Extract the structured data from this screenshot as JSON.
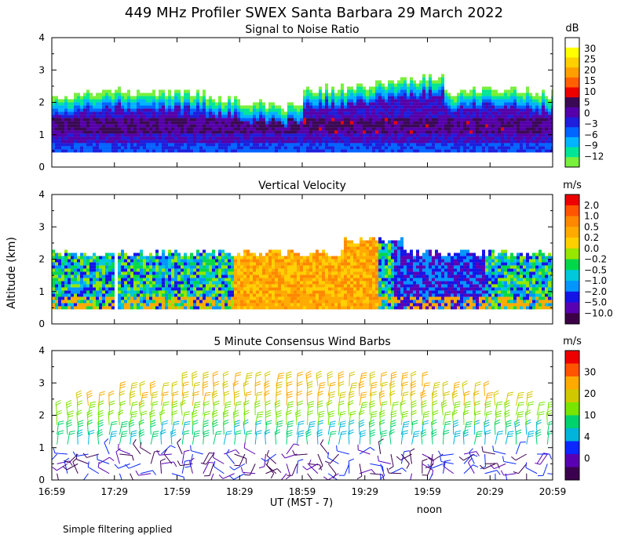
{
  "figure": {
    "title": "449 MHz Profiler SWEX Santa Barbara 29 March 2022",
    "ylabel": "Altitude (km)",
    "xlabel": "UT  (MST - 7)",
    "x_note": "noon",
    "footnote": "Simple filtering applied",
    "x_ticks": [
      "16:59",
      "17:29",
      "17:59",
      "18:29",
      "18:59",
      "19:29",
      "19:59",
      "20:29",
      "20:59"
    ],
    "y_ticks": [
      "0",
      "1",
      "2",
      "3",
      "4"
    ]
  },
  "chart_data": [
    {
      "type": "heatmap",
      "title": "Signal to Noise Ratio",
      "xlabel": "UT  (MST - 7)",
      "ylabel": "Altitude (km)",
      "ylim": [
        0,
        4
      ],
      "x_range": [
        "16:59",
        "20:59"
      ],
      "colorbar": {
        "unit": "dB",
        "ticks": [
          "30",
          "25",
          "20",
          "15",
          "10",
          "5",
          "0",
          "−3",
          "−6",
          "−9",
          "−12"
        ],
        "colors": [
          "#ffffff",
          "#ffff00",
          "#ffd000",
          "#ffa000",
          "#ff6000",
          "#ee0000",
          "#3b0a55",
          "#5500aa",
          "#1e1edc",
          "#0064ff",
          "#00b4ff",
          "#00e696",
          "#78f03c"
        ]
      },
      "data_top_km": 2.2,
      "data_bottom_km": 0.45
    },
    {
      "type": "heatmap",
      "title": "Vertical Velocity",
      "xlabel": "UT  (MST - 7)",
      "ylabel": "Altitude (km)",
      "ylim": [
        0,
        4
      ],
      "x_range": [
        "16:59",
        "20:59"
      ],
      "colorbar": {
        "unit": "m/s",
        "ticks": [
          "2.0",
          "1.0",
          "0.5",
          "0.2",
          "0.0",
          "−0.2",
          "−0.5",
          "−1.0",
          "−2.0",
          "−5.0",
          "−10.0"
        ],
        "colors": [
          "#ee0000",
          "#ff5500",
          "#ff8800",
          "#ffaa00",
          "#ffd000",
          "#96e600",
          "#00d84a",
          "#00c8dc",
          "#0096ff",
          "#1414e6",
          "#5a00b4",
          "#3c0046"
        ]
      },
      "data_top_km": 2.3,
      "data_bottom_km": 0.45
    },
    {
      "type": "scatter",
      "title": "5 Minute Consensus Wind Barbs",
      "xlabel": "UT  (MST - 7)",
      "ylabel": "Altitude (km)",
      "ylim": [
        0,
        4
      ],
      "x_range": [
        "16:59",
        "20:59"
      ],
      "colorbar": {
        "unit": "m/s",
        "ticks": [
          "30",
          "20",
          "10",
          "4",
          "0"
        ],
        "colors": [
          "#ee0000",
          "#ff5500",
          "#ffaa00",
          "#d2c800",
          "#78e600",
          "#00d26e",
          "#00b4dc",
          "#0a28ff",
          "#5a00b4",
          "#3c0050"
        ]
      },
      "barb_interval_min": 5,
      "barb_levels_km": [
        0.2,
        0.5,
        0.8,
        1.1,
        1.4,
        1.7,
        2.0,
        2.3,
        2.6,
        2.9,
        3.2,
        3.5
      ]
    }
  ]
}
